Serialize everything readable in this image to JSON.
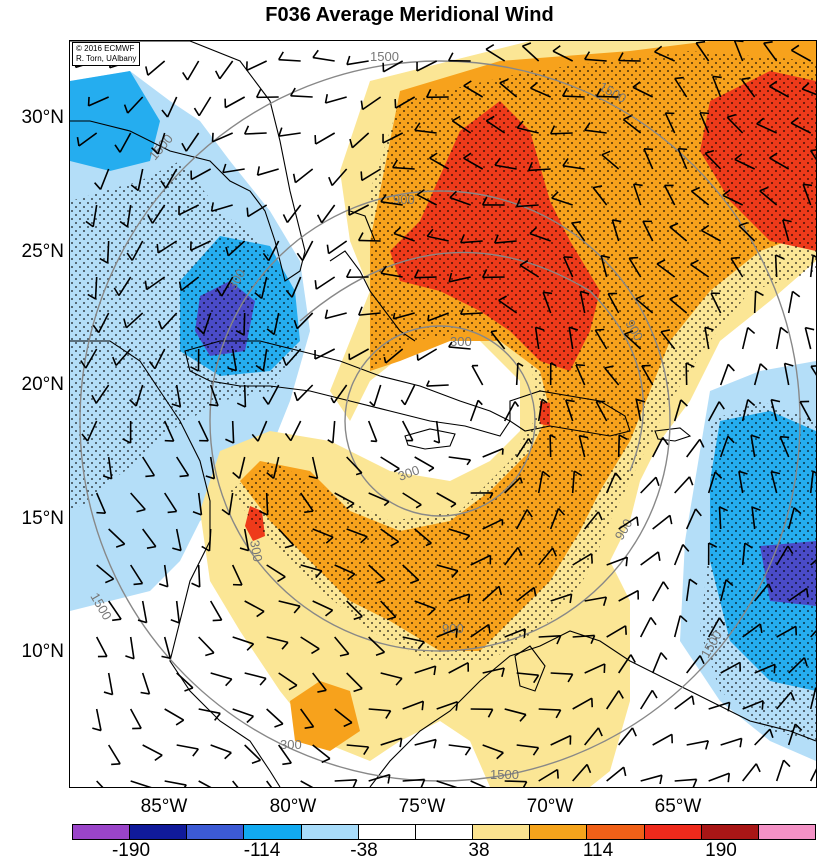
{
  "title": "F036 Average Meridional Wind",
  "credit": {
    "line1": "© 2016 ECMWF",
    "line2": "R. Torn, UAlbany"
  },
  "lat_labels": [
    "30°N",
    "25°N",
    "20°N",
    "15°N",
    "10°N"
  ],
  "lon_labels": [
    "85°W",
    "80°W",
    "75°W",
    "70°W",
    "65°W"
  ],
  "contour_labels": [
    "1500",
    "1500",
    "900",
    "900",
    "900",
    "300",
    "300",
    "300",
    "1500",
    "1500",
    "900",
    "1500",
    "300",
    "300",
    "1500"
  ],
  "colorbar": {
    "labels": [
      "-190",
      "-114",
      "-38",
      "38",
      "114",
      "190"
    ],
    "colors": [
      "#9a44c9",
      "#101a9a",
      "#3c5ad4",
      "#12aaf0",
      "#a8dcfa",
      "#ffffff",
      "#ffffff",
      "#fbe38f",
      "#f5a41c",
      "#f06018",
      "#ee2a1c",
      "#a81616",
      "#f492c6"
    ]
  },
  "shading_colors": {
    "strong_pos": "#ee3a1a",
    "mod_pos": "#f7a21c",
    "weak_pos": "#fbe695",
    "weak_neg": "#b4def8",
    "mod_neg": "#25adef",
    "strong_neg": "#3d5fd5",
    "very_strong_neg": "#4a4bc8"
  }
}
